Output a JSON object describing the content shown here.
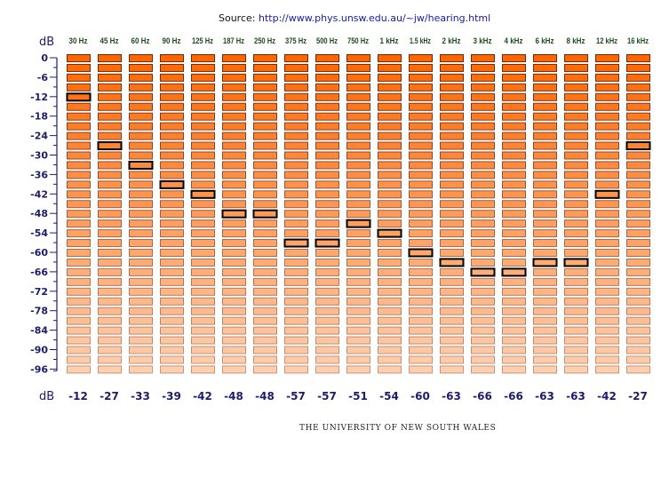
{
  "source": {
    "label": "Source:",
    "url_text": "http://www.phys.unsw.edu.au/~jw/hearing.html"
  },
  "footer": "THE UNIVERSITY OF NEW SOUTH WALES",
  "chart_data": {
    "type": "heatmap",
    "title": "",
    "xlabel": "",
    "ylabel": "dB",
    "bottom_label": "dB",
    "categories": [
      "30 Hz",
      "45 Hz",
      "60 Hz",
      "90 Hz",
      "125 Hz",
      "187 Hz",
      "250 Hz",
      "375 Hz",
      "500 Hz",
      "750 Hz",
      "1 kHz",
      "1.5 kHz",
      "2 kHz",
      "3 kHz",
      "4 kHz",
      "6 kHz",
      "8 kHz",
      "12 kHz",
      "16 kHz"
    ],
    "values": [
      -12,
      -27,
      -33,
      -39,
      -42,
      -48,
      -48,
      -57,
      -57,
      -51,
      -54,
      -60,
      -63,
      -66,
      -66,
      -63,
      -63,
      -42,
      -27
    ],
    "ylim": [
      0,
      -96
    ],
    "ystep": 3,
    "yticks": [
      0,
      -6,
      -12,
      -18,
      -24,
      -30,
      -36,
      -42,
      -48,
      -54,
      -60,
      -66,
      -72,
      -78,
      -84,
      -90,
      -96
    ],
    "colors": {
      "top": "#ff6600",
      "bottom": "#ffcfb0",
      "highlight_border": "#000000",
      "axis": "#1c1c6e",
      "freq_label": "#1e4a1e"
    }
  }
}
